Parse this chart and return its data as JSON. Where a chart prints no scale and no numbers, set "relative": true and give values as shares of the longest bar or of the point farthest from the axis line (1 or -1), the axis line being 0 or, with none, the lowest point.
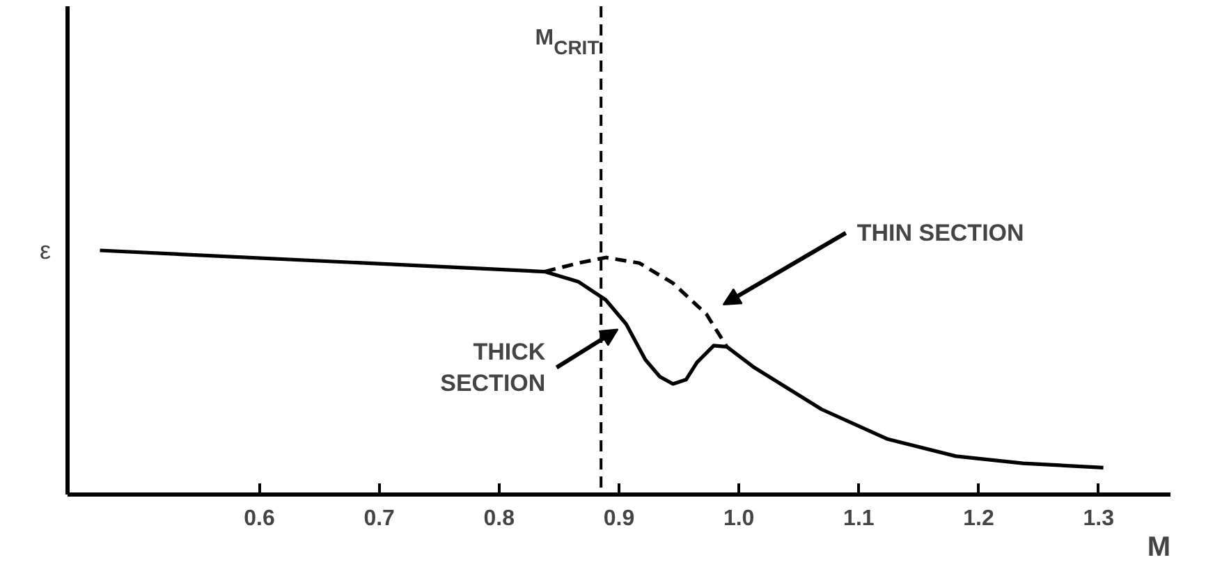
{
  "chart_data": {
    "type": "line",
    "relative": true,
    "xlabel": "M",
    "ylabel": "ε",
    "xlim": [
      0.44,
      1.36
    ],
    "xticks": [
      0.6,
      0.7,
      0.8,
      0.9,
      {
        "value": 1.0,
        "label": "1.0"
      },
      1.1,
      1.2,
      1.3
    ],
    "grid": false,
    "marker": "none",
    "series": [
      {
        "name": "THICK SECTION",
        "color": "#000000",
        "line_style": "solid",
        "x": [
          0.467,
          0.838,
          0.866,
          0.889,
          0.906,
          0.922,
          0.934,
          0.945,
          0.956,
          0.965,
          0.979,
          0.99,
          1.012,
          1.069,
          1.124,
          1.181,
          1.237,
          1.304
        ],
        "values": [
          1.0,
          0.913,
          0.872,
          0.797,
          0.698,
          0.552,
          0.483,
          0.453,
          0.471,
          0.541,
          0.61,
          0.605,
          0.523,
          0.349,
          0.227,
          0.157,
          0.128,
          0.11
        ]
      },
      {
        "name": "THIN SECTION",
        "color": "#000000",
        "line_style": "dashed",
        "x": [
          0.838,
          0.866,
          0.889,
          0.917,
          0.945,
          0.973,
          0.99
        ],
        "values": [
          0.913,
          0.948,
          0.971,
          0.948,
          0.866,
          0.738,
          0.605
        ]
      }
    ],
    "ref_lines": [
      {
        "axis": "x",
        "value": 0.885,
        "label": "M$_{CRIT}$",
        "line_style": "dashed",
        "color": "#000000"
      }
    ]
  }
}
